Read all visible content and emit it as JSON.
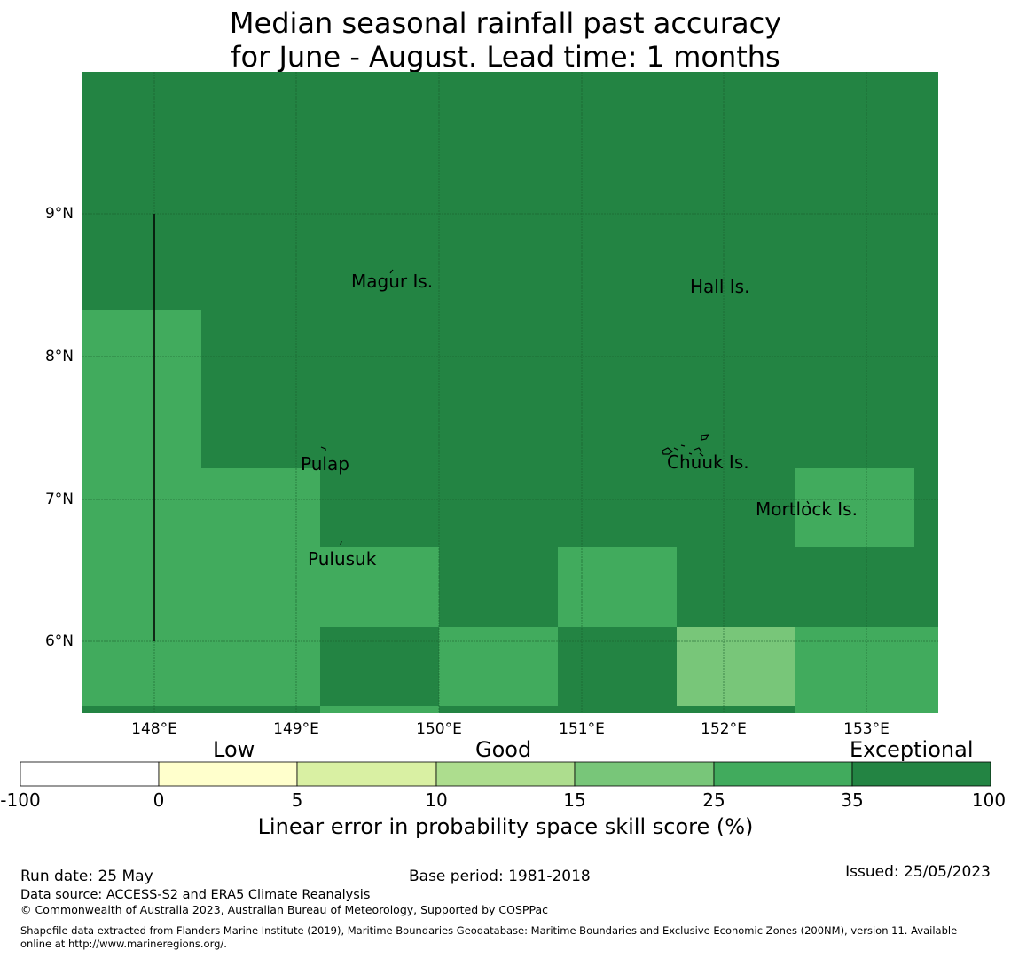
{
  "title": {
    "line1": "Median seasonal rainfall past accuracy",
    "line2": "for June - August. Lead time: 1 months"
  },
  "map": {
    "lat_labels": [
      "9°N",
      "8°N",
      "7°N",
      "6°N"
    ],
    "lon_labels": [
      "148°E",
      "149°E",
      "150°E",
      "151°E",
      "152°E",
      "153°E"
    ],
    "places": [
      "Magur Is.",
      "Hall Is.",
      "Pulap",
      "Chuuk Is.",
      "Mortlock Is.",
      "Pulusuk"
    ],
    "colors": {
      "exceptional": "#238443",
      "skill_25_35": "#41ab5d",
      "skill_15_25": "#78c679"
    }
  },
  "colorbar": {
    "categories": [
      "Low",
      "Good",
      "Exceptional"
    ],
    "ticks": [
      "-100",
      "0",
      "5",
      "10",
      "15",
      "25",
      "35",
      "100"
    ],
    "colors": [
      "#ffffff",
      "#ffffcc",
      "#d9f0a3",
      "#addd8e",
      "#78c679",
      "#41ab5d",
      "#238443"
    ],
    "label": "Linear error in probability space skill score (%)"
  },
  "footer": {
    "run_date": "Run date: 25 May",
    "base_period": "Base period: 1981-2018",
    "issued": "Issued: 25/05/2023",
    "data_source": "Data source: ACCESS-S2 and ERA5 Climate Reanalysis",
    "copyright": "© Commonwealth of Australia 2023, Australian Bureau of Meteorology, Supported by COSPPac",
    "shapefile_line1": "Shapefile data extracted from Flanders Marine Institute (2019), Maritime Boundaries Geodatabase: Maritime Boundaries and Exclusive Economic Zones (200NM), version 11. Available",
    "shapefile_line2": "online at http://www.marineregions.org/."
  }
}
